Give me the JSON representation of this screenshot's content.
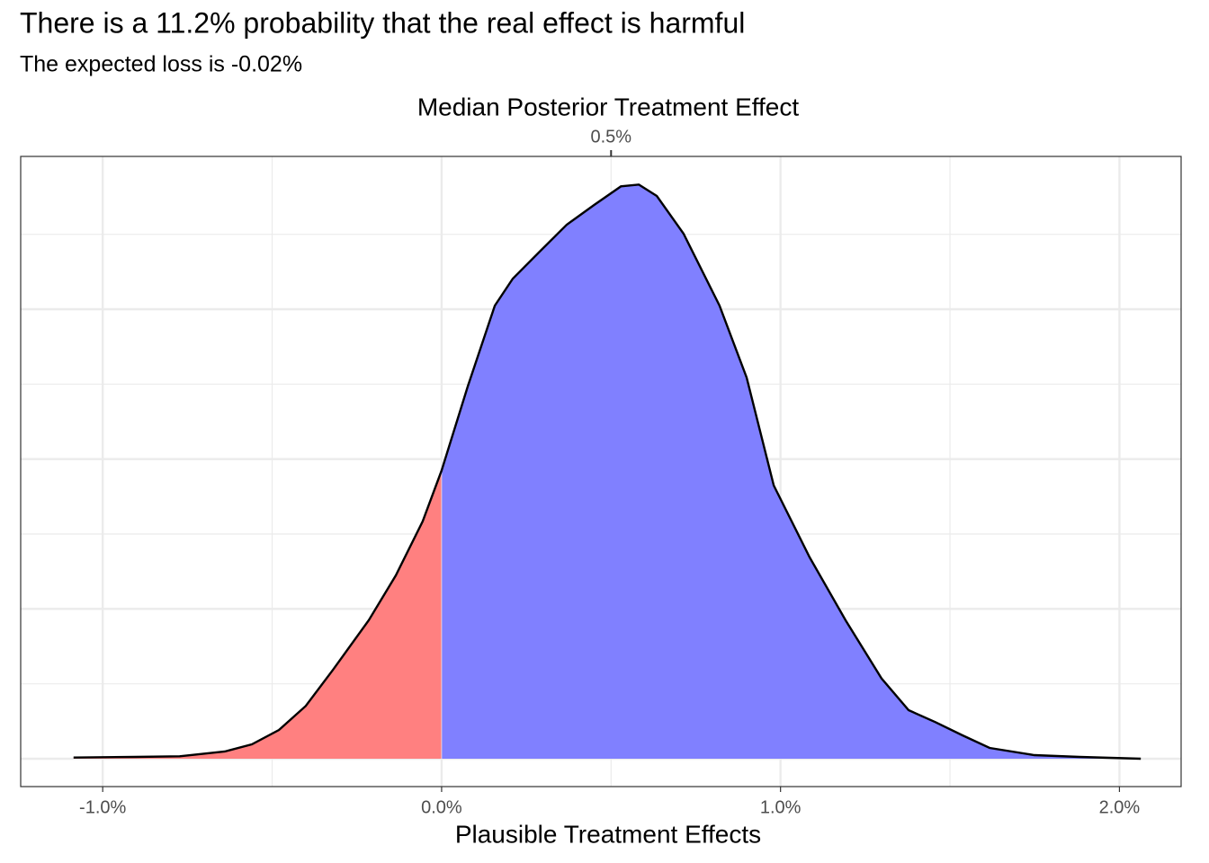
{
  "chart_data": {
    "type": "density",
    "title": "There is a 11.2% probability that the real effect is harmful",
    "subtitle": "The expected loss is -0.02%",
    "top_axis_title": "Median Posterior Treatment Effect",
    "median": {
      "value": 0.5,
      "label": "0.5%"
    },
    "x_label": "Plausible Treatment Effects",
    "x": [
      -1.086,
      -0.905,
      -0.773,
      -0.64,
      -0.56,
      -0.48,
      -0.401,
      -0.321,
      -0.215,
      -0.135,
      -0.056,
      0,
      0.077,
      0.157,
      0.21,
      0.289,
      0.369,
      0.45,
      0.529,
      0.582,
      0.635,
      0.714,
      0.82,
      0.9,
      0.98,
      1.086,
      1.192,
      1.298,
      1.378,
      1.457,
      1.537,
      1.617,
      1.749,
      1.882,
      2.063
    ],
    "values": [
      0.002,
      0.003,
      0.004,
      0.012,
      0.024,
      0.048,
      0.088,
      0.148,
      0.231,
      0.306,
      0.396,
      0.481,
      0.621,
      0.756,
      0.801,
      0.846,
      0.891,
      0.924,
      0.955,
      0.958,
      0.939,
      0.876,
      0.756,
      0.636,
      0.456,
      0.336,
      0.231,
      0.134,
      0.081,
      0.061,
      0.039,
      0.018,
      0.006,
      0.003,
      0.0
    ],
    "split_at": 0,
    "colors": {
      "below": "#ff8080",
      "above": "#8080ff",
      "line": "#000000"
    },
    "xlim": [
      -1.242,
      2.182
    ],
    "ylim": [
      -0.0465,
      1.005
    ],
    "xticks": [
      {
        "value": -1,
        "label": "-1.0%"
      },
      {
        "value": 0,
        "label": "0.0%"
      },
      {
        "value": 1,
        "label": "1.0%"
      },
      {
        "value": 2,
        "label": "2.0%"
      }
    ],
    "minor_xticks": [
      -0.5,
      0.5,
      1.5
    ],
    "yticks": [
      0,
      0.25,
      0.5,
      0.75
    ],
    "minor_yticks": [
      0.125,
      0.375,
      0.625,
      0.875
    ],
    "grid": true
  }
}
